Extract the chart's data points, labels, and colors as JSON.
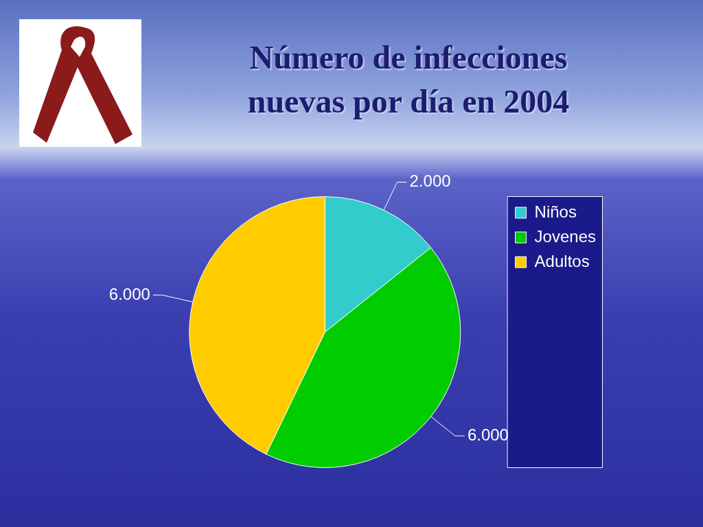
{
  "chart_data": {
    "type": "pie",
    "title": "Número de infecciones nuevas por día en 2004",
    "categories": [
      "Niños",
      "Jovenes",
      "Adultos"
    ],
    "values": [
      2000,
      6000,
      6000
    ],
    "value_labels": [
      "2.000",
      "6.000",
      "6.000"
    ],
    "colors": [
      "#33cccc",
      "#00cc00",
      "#ffcc00"
    ],
    "legend": "right"
  }
}
